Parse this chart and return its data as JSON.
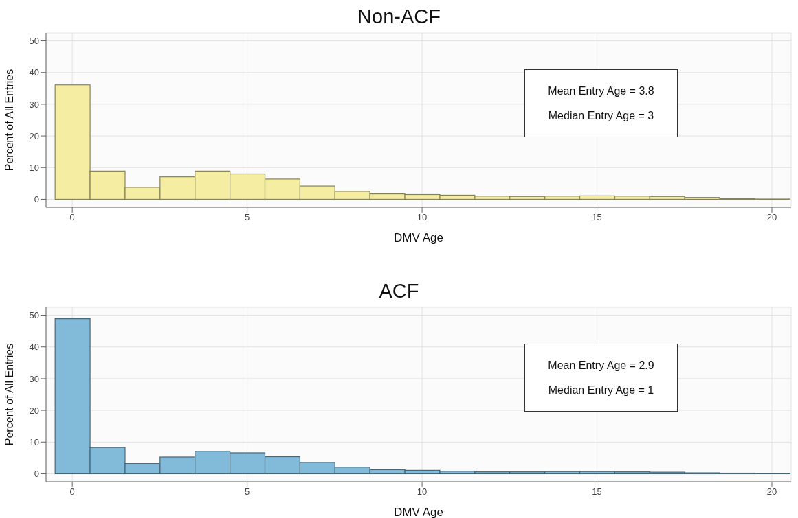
{
  "chart_data": [
    {
      "type": "histogram",
      "title": "Non-ACF",
      "xlabel": "DMV Age",
      "ylabel": "Percent of All Entries",
      "bins": [
        -0.5,
        0.5,
        1.5,
        2.5,
        3.5,
        4.5,
        5.5,
        6.5,
        7.5,
        8.5,
        9.5,
        10.5,
        11.5,
        12.5,
        13.5,
        14.5,
        15.5,
        16.5,
        17.5,
        18.5,
        19.5,
        20.5
      ],
      "values": [
        36.1,
        8.9,
        3.8,
        7.1,
        8.9,
        8.0,
        6.4,
        4.2,
        2.5,
        1.7,
        1.5,
        1.3,
        1.0,
        0.9,
        1.0,
        1.1,
        1.0,
        0.9,
        0.6,
        0.2,
        0.1
      ],
      "color": "#f5eea2",
      "xlim": [
        -0.75,
        20.55
      ],
      "xticks": [
        0,
        5,
        10,
        15,
        20
      ],
      "ylim": [
        -2.5,
        52.5
      ],
      "yticks": [
        0,
        10,
        20,
        30,
        40,
        50
      ],
      "grid": true,
      "annotations": [
        "Mean Entry Age = 3.8",
        "Median Entry Age = 3"
      ]
    },
    {
      "type": "histogram",
      "title": "ACF",
      "xlabel": "DMV Age",
      "ylabel": "Percent of All Entries",
      "bins": [
        -0.5,
        0.5,
        1.5,
        2.5,
        3.5,
        4.5,
        5.5,
        6.5,
        7.5,
        8.5,
        9.5,
        10.5,
        11.5,
        12.5,
        13.5,
        14.5,
        15.5,
        16.5,
        17.5,
        18.5,
        19.5,
        20.5
      ],
      "values": [
        48.9,
        8.3,
        3.2,
        5.3,
        7.1,
        6.6,
        5.4,
        3.6,
        2.1,
        1.3,
        1.1,
        0.8,
        0.6,
        0.6,
        0.7,
        0.7,
        0.6,
        0.5,
        0.3,
        0.2,
        0.1
      ],
      "color": "#82bad9",
      "xlim": [
        -0.75,
        20.55
      ],
      "xticks": [
        0,
        5,
        10,
        15,
        20
      ],
      "ylim": [
        -2.5,
        52.5
      ],
      "yticks": [
        0,
        10,
        20,
        30,
        40,
        50
      ],
      "grid": true,
      "annotations": [
        "Mean Entry Age = 2.9",
        "Median Entry Age = 1"
      ]
    }
  ]
}
